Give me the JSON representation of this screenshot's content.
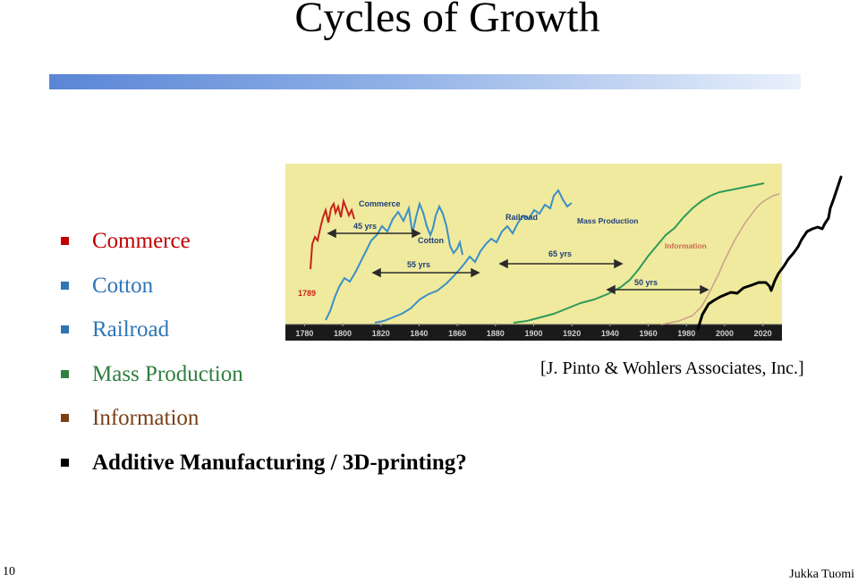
{
  "slide": {
    "title": "Cycles of Growth",
    "bullets": [
      {
        "text": "Commerce",
        "color": "#c00000",
        "bold": false
      },
      {
        "text": "Cotton",
        "color": "#2e75b6",
        "bold": false
      },
      {
        "text": "Railroad",
        "color": "#2e75b6",
        "bold": false
      },
      {
        "text": "Mass Production",
        "color": "#2f7f3f",
        "bold": false
      },
      {
        "text": "Information",
        "color": "#7b3f18",
        "bold": false
      },
      {
        "text": "Additive Manufacturing / 3D-printing?",
        "color": "#000000",
        "bold": true
      }
    ],
    "citation": "[J. Pinto & Wohlers Associates, Inc.]",
    "page_number": "10",
    "author": "Jukka Tuomi"
  },
  "figure": {
    "curve_labels": {
      "commerce": "Commerce",
      "cotton": "Cotton",
      "railroad": "Railroad",
      "mass_production": "Mass Production",
      "information": "Information"
    },
    "start_label": "1789",
    "spans": [
      "45 yrs",
      "55 yrs",
      "65 yrs",
      "50 yrs"
    ],
    "axis_years": [
      "1780",
      "1800",
      "1820",
      "1840",
      "1860",
      "1880",
      "1900",
      "1920",
      "1940",
      "1960",
      "1980",
      "2000",
      "2020"
    ],
    "colors": {
      "background": "#f0ea9e",
      "axis": "#1a1a1a",
      "commerce": "#c8231d",
      "cotton": "#3a8fc6",
      "railroad": "#3a8fc6",
      "mass_production": "#2f9a5a",
      "information": "#c9a08c",
      "additive": "#000000"
    }
  }
}
